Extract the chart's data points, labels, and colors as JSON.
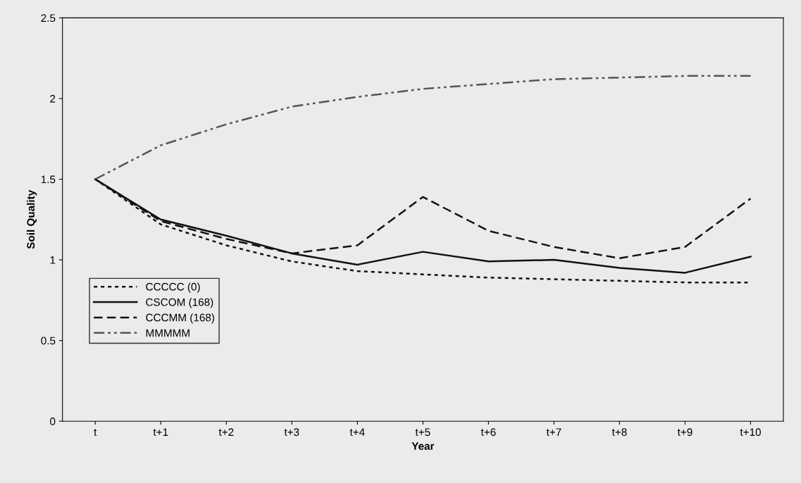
{
  "chart_data": {
    "type": "line",
    "xlabel": "Year",
    "ylabel": "Soil Quality",
    "categories": [
      "t",
      "t+1",
      "t+2",
      "t+3",
      "t+4",
      "t+5",
      "t+6",
      "t+7",
      "t+8",
      "t+9",
      "t+10"
    ],
    "series": [
      {
        "name": "CCCCC (0)",
        "color": "#111111",
        "line_style": "dotted",
        "values": [
          1.5,
          1.22,
          1.09,
          0.99,
          0.93,
          0.91,
          0.89,
          0.88,
          0.87,
          0.86,
          0.86
        ]
      },
      {
        "name": "CSCOM (168)",
        "color": "#111111",
        "line_style": "solid",
        "values": [
          1.5,
          1.25,
          1.15,
          1.04,
          0.97,
          1.05,
          0.99,
          1.0,
          0.95,
          0.92,
          1.02
        ]
      },
      {
        "name": "CCCMM (168)",
        "color": "#111111",
        "line_style": "dashed",
        "values": [
          1.5,
          1.24,
          1.13,
          1.04,
          1.09,
          1.39,
          1.18,
          1.08,
          1.01,
          1.08,
          1.38
        ]
      },
      {
        "name": "MMMMM",
        "color": "#555555",
        "line_style": "dashdotdot",
        "values": [
          1.5,
          1.71,
          1.84,
          1.95,
          2.01,
          2.06,
          2.09,
          2.12,
          2.13,
          2.14,
          2.14
        ]
      }
    ],
    "ylim": [
      0,
      2.5
    ],
    "yticks": [
      0,
      0.5,
      1,
      1.5,
      2,
      2.5
    ],
    "grid": false,
    "legend": "bottom left",
    "marker": "none"
  }
}
